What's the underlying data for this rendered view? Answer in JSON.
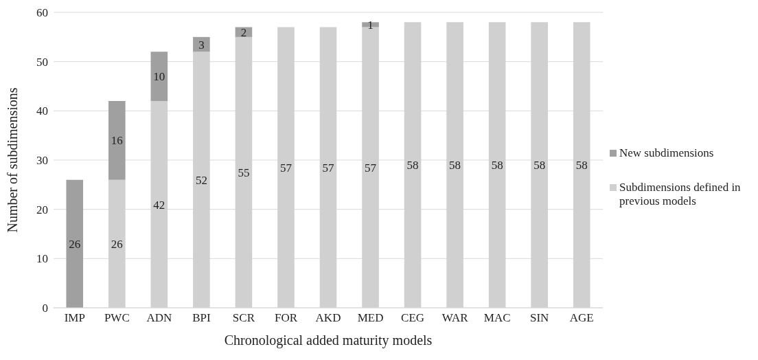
{
  "chart_data": {
    "type": "bar",
    "stacked": true,
    "xlabel": "Chronological added maturity models",
    "ylabel": "Number of subdimensions",
    "categories": [
      "IMP",
      "PWC",
      "ADN",
      "BPI",
      "SCR",
      "FOR",
      "AKD",
      "MED",
      "CEG",
      "WAR",
      "MAC",
      "SIN",
      "AGE"
    ],
    "series": [
      {
        "name": "Subdimensions defined in previous models",
        "color": "#d0d0d0",
        "values": [
          0,
          26,
          42,
          52,
          55,
          57,
          57,
          57,
          58,
          58,
          58,
          58,
          58
        ],
        "value_labels": [
          null,
          "26",
          "42",
          "52",
          "55",
          "57",
          "57",
          "57",
          "58",
          "58",
          "58",
          "58",
          "58"
        ]
      },
      {
        "name": "New subdimensions",
        "color": "#a0a0a0",
        "values": [
          26,
          16,
          10,
          3,
          2,
          0,
          0,
          1,
          0,
          0,
          0,
          0,
          0
        ],
        "value_labels": [
          "26",
          "16",
          "10",
          "3",
          "2",
          null,
          null,
          "1",
          null,
          null,
          null,
          null,
          null
        ]
      }
    ],
    "ylim": [
      0,
      60
    ],
    "yticks": [
      0,
      10,
      20,
      30,
      40,
      50,
      60
    ],
    "grid": "y",
    "legend": "right"
  }
}
